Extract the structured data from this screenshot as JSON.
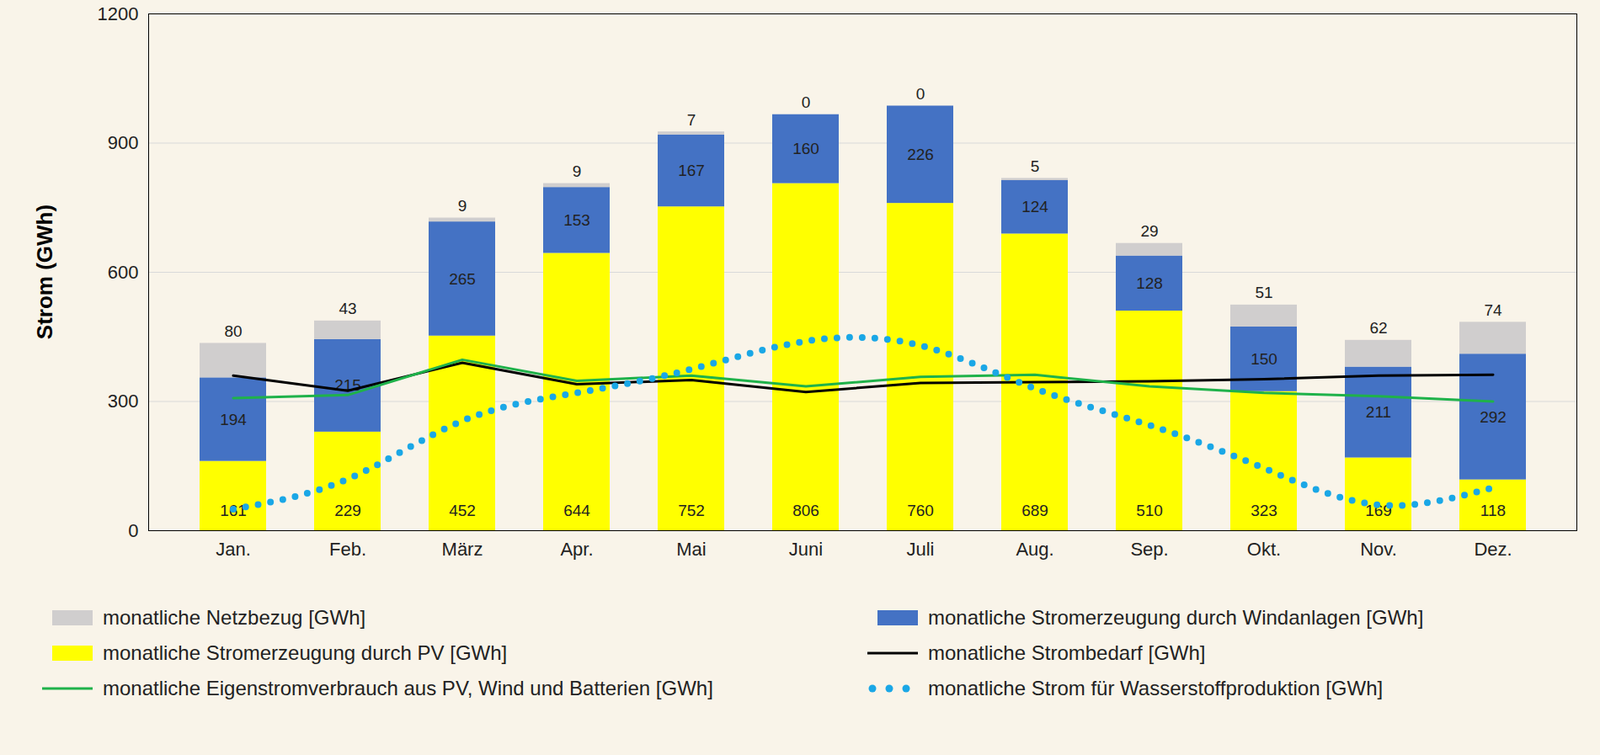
{
  "chart_data": {
    "type": "bar",
    "stacked": true,
    "data_labels": true,
    "grid": true,
    "y_label": "Strom (GWh)",
    "categories": [
      "Jan.",
      "Feb.",
      "März",
      "Apr.",
      "Mai",
      "Juni",
      "Juli",
      "Aug.",
      "Sep.",
      "Okt.",
      "Nov.",
      "Dez."
    ],
    "ylim": [
      0,
      1200
    ],
    "yticks": [
      0,
      300,
      600,
      900,
      1200
    ],
    "series": [
      {
        "name": "monatliche Stromerzeugung durch PV [GWh]",
        "type": "bar",
        "color": "#ffff00",
        "values": [
          161,
          229,
          452,
          644,
          752,
          806,
          760,
          689,
          510,
          323,
          169,
          118
        ]
      },
      {
        "name": "monatliche Stromerzeugung durch Windanlagen [GWh]",
        "type": "bar",
        "color": "#4472c4",
        "values": [
          194,
          215,
          265,
          153,
          167,
          160,
          226,
          124,
          128,
          150,
          211,
          292
        ]
      },
      {
        "name": "monatliche Netzbezug [GWh]",
        "type": "bar",
        "color": "#d0cece",
        "values": [
          80,
          43,
          9,
          9,
          7,
          0,
          0,
          5,
          29,
          51,
          62,
          74
        ]
      },
      {
        "name": "monatliche Strombedarf [GWh]",
        "type": "line",
        "color": "#000000",
        "line_style": "solid",
        "values": [
          360,
          325,
          390,
          340,
          350,
          322,
          343,
          345,
          347,
          352,
          360,
          362
        ]
      },
      {
        "name": "monatliche Eigenstromverbrauch aus PV, Wind und Batterien [GWh]",
        "type": "line",
        "color": "#1fb24a",
        "line_style": "solid",
        "values": [
          308,
          315,
          397,
          348,
          360,
          335,
          357,
          362,
          335,
          320,
          312,
          300
        ]
      },
      {
        "name": "monatliche Strom für Wasserstoffproduktion [GWh]",
        "type": "line",
        "color": "#1aa7e6",
        "line_style": "dotted",
        "values": [
          50,
          120,
          255,
          320,
          375,
          440,
          430,
          330,
          245,
          145,
          60,
          100
        ]
      }
    ]
  }
}
